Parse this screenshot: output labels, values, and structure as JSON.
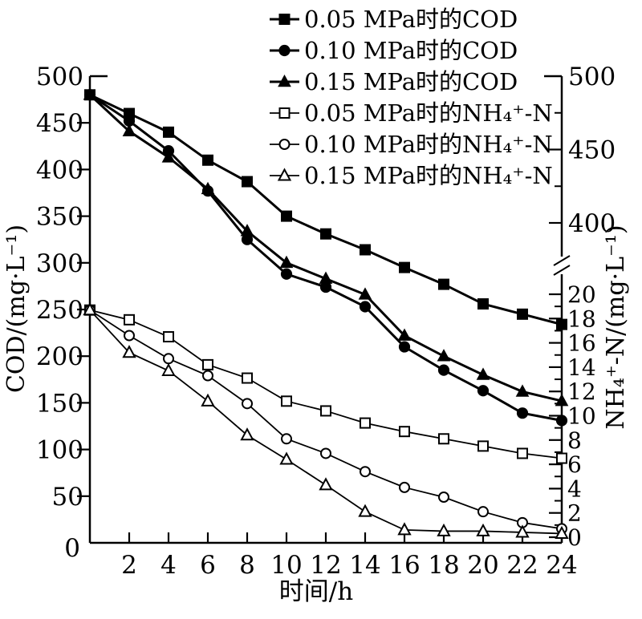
{
  "chart_data": {
    "type": "line",
    "x": [
      0,
      2,
      4,
      6,
      8,
      10,
      12,
      14,
      16,
      18,
      20,
      22,
      24
    ],
    "xlabel": "时间/h",
    "x_tick_labels": [
      2,
      4,
      6,
      8,
      10,
      12,
      14,
      16,
      18,
      20,
      22,
      24
    ],
    "origin_label": "0",
    "left_axis": {
      "label": "COD/(mg·L⁻¹)",
      "range": [
        0,
        500
      ],
      "ticks": [
        50,
        100,
        150,
        200,
        250,
        300,
        350,
        400,
        450,
        500
      ]
    },
    "right_axis": {
      "label": "NH₄⁺-N/(mg·L⁻¹)",
      "axis_break": true,
      "upper_segment": {
        "range": [
          400,
          500
        ],
        "major_ticks": [
          400,
          450,
          500
        ],
        "minor_ticks": [
          425,
          475
        ]
      },
      "lower_segment": {
        "range": [
          0,
          20
        ],
        "major_ticks": [
          0,
          2,
          4,
          6,
          8,
          10,
          12,
          14,
          16,
          18,
          20
        ],
        "minor_ticks": [
          1,
          3,
          5,
          7,
          9,
          11,
          13,
          15,
          17,
          19
        ]
      }
    },
    "series": [
      {
        "name": "0.05 MPa时的COD",
        "pressure_MPa": 0.05,
        "measure": "COD",
        "axis": "left",
        "marker": "square",
        "marker_fill": "filled",
        "values": [
          480,
          460,
          440,
          410,
          387,
          350,
          331,
          314,
          295,
          277,
          256,
          245,
          234
        ]
      },
      {
        "name": "0.10 MPa时的COD",
        "pressure_MPa": 0.1,
        "measure": "COD",
        "axis": "left",
        "marker": "circle",
        "marker_fill": "filled",
        "values": [
          480,
          452,
          420,
          377,
          325,
          288,
          274,
          253,
          210,
          185,
          163,
          139,
          131
        ]
      },
      {
        "name": "0.15 MPa时的COD",
        "pressure_MPa": 0.15,
        "measure": "COD",
        "axis": "left",
        "marker": "triangle",
        "marker_fill": "filled",
        "values": [
          480,
          441,
          413,
          379,
          334,
          300,
          283,
          266,
          222,
          200,
          180,
          162,
          152
        ]
      },
      {
        "name": "0.05 MPa时的NH₄⁺-N",
        "pressure_MPa": 0.05,
        "measure": "NH4+-N",
        "axis": "right",
        "marker": "square",
        "marker_fill": "open",
        "values": [
          18.7,
          17.9,
          16.5,
          14.2,
          13.1,
          11.2,
          10.4,
          9.4,
          8.7,
          8.1,
          7.5,
          6.9,
          6.5
        ]
      },
      {
        "name": "0.10 MPa时的NH₄⁺-N",
        "pressure_MPa": 0.1,
        "measure": "NH4+-N",
        "axis": "right",
        "marker": "circle",
        "marker_fill": "open",
        "values": [
          18.7,
          16.6,
          14.7,
          13.3,
          11.0,
          8.1,
          6.9,
          5.4,
          4.1,
          3.3,
          2.1,
          1.2,
          0.7
        ]
      },
      {
        "name": "0.15 MPa时的NH₄⁺-N",
        "pressure_MPa": 0.15,
        "measure": "NH4+-N",
        "axis": "right",
        "marker": "triangle",
        "marker_fill": "open",
        "values": [
          18.7,
          15.2,
          13.7,
          11.2,
          8.4,
          6.4,
          4.3,
          2.1,
          0.6,
          0.5,
          0.5,
          0.4,
          0.3
        ]
      }
    ],
    "legend_position": "top-center-right",
    "grid": false,
    "colors": {
      "foreground": "#000000",
      "background": "#ffffff"
    }
  }
}
